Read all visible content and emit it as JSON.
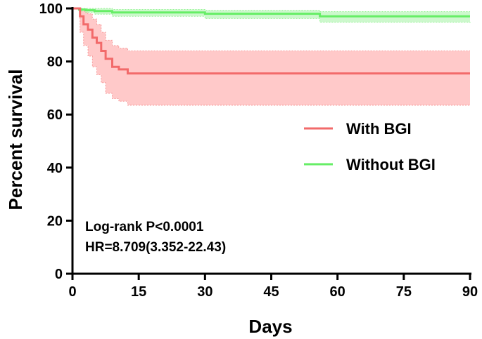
{
  "chart_data": {
    "type": "line",
    "title": "",
    "xlabel": "Days",
    "ylabel": "Percent survival",
    "xlim": [
      0,
      90
    ],
    "ylim": [
      0,
      100
    ],
    "x_ticks": [
      0,
      15,
      30,
      45,
      60,
      75,
      90
    ],
    "y_ticks": [
      0,
      20,
      40,
      60,
      80,
      100
    ],
    "grid": false,
    "legend_position": "middle-right",
    "series": [
      {
        "name": "With BGI",
        "color": "#f26a6a",
        "band_color": "#ffc0c0",
        "x": [
          0,
          1,
          1.7,
          2.5,
          3.5,
          4.5,
          5.5,
          6.5,
          7.5,
          9,
          10.5,
          12.5,
          90
        ],
        "y": [
          100,
          100,
          97,
          94,
          92,
          89,
          87,
          84,
          81,
          78,
          77,
          75.5,
          75.5
        ],
        "lower": [
          100,
          100,
          91,
          86,
          82,
          78,
          75,
          72,
          68,
          66,
          65,
          63.5,
          63.5
        ],
        "upper": [
          100,
          100,
          100,
          99,
          98,
          96,
          94,
          91,
          88,
          86,
          85,
          84,
          84
        ]
      },
      {
        "name": "Without BGI",
        "color": "#66ee66",
        "band_color": "#c4f7c4",
        "x": [
          0,
          1.5,
          3,
          5,
          9,
          30,
          56,
          90
        ],
        "y": [
          100,
          99.6,
          99.3,
          99,
          98.5,
          98,
          97,
          97
        ],
        "lower": [
          100,
          99,
          98.5,
          97.8,
          97,
          96.2,
          94.8,
          94.5
        ],
        "upper": [
          100,
          100,
          100,
          100,
          99.6,
          99.3,
          98.8,
          98.8
        ]
      }
    ],
    "annotations": [
      "Log-rank P<0.0001",
      "HR=8.709(3.352-22.43)"
    ]
  }
}
